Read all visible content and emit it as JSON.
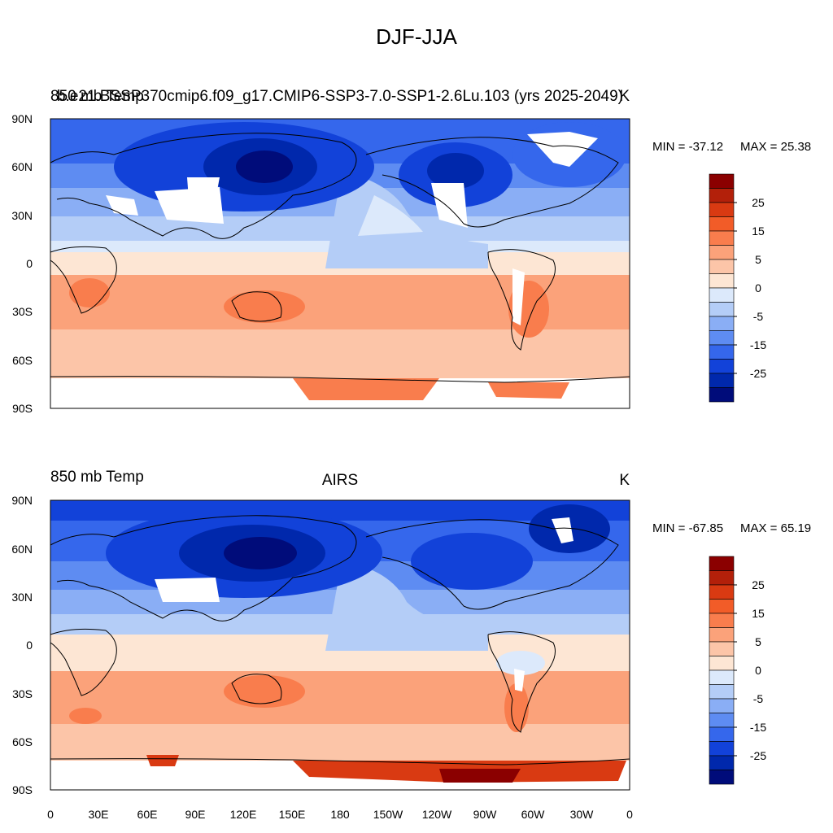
{
  "title": "DJF-JJA",
  "colorbar_levels": [
    -30,
    -25,
    -20,
    -15,
    -10,
    -5,
    0,
    5,
    10,
    15,
    20,
    25,
    30
  ],
  "colorbar_labels": [
    "25",
    "15",
    "5",
    "0",
    "-5",
    "-15",
    "-25"
  ],
  "colorbar_colors": [
    "#8b0000",
    "#b3200a",
    "#d93a12",
    "#f25c28",
    "#f97d4d",
    "#fba27a",
    "#fcc5a8",
    "#fde6d4",
    "#dce9fb",
    "#b4cdf7",
    "#8aaef5",
    "#5e8cf2",
    "#3567ec",
    "#1242d9",
    "#0028ac",
    "#000c7a"
  ],
  "x_tick_labels": [
    "0",
    "30E",
    "60E",
    "90E",
    "120E",
    "150E",
    "180",
    "150W",
    "120W",
    "90W",
    "60W",
    "30W",
    "0"
  ],
  "y_tick_labels": [
    "90N",
    "60N",
    "30N",
    "0",
    "30S",
    "60S",
    "90S"
  ],
  "panels": [
    {
      "left_title": "850 mb Temp",
      "center_title": "b.e21.BSSP370cmip6.f09_g17.CMIP6-SSP3-7.0-SSP1-2.6Lu.103 (yrs 2025-2049)",
      "right_title": "K",
      "min_label": "MIN = -37.12",
      "max_label": "MAX =  25.38"
    },
    {
      "left_title": "850 mb Temp",
      "center_title": "AIRS",
      "right_title": "K",
      "min_label": "MIN = -67.85",
      "max_label": "MAX =  65.19"
    }
  ]
}
